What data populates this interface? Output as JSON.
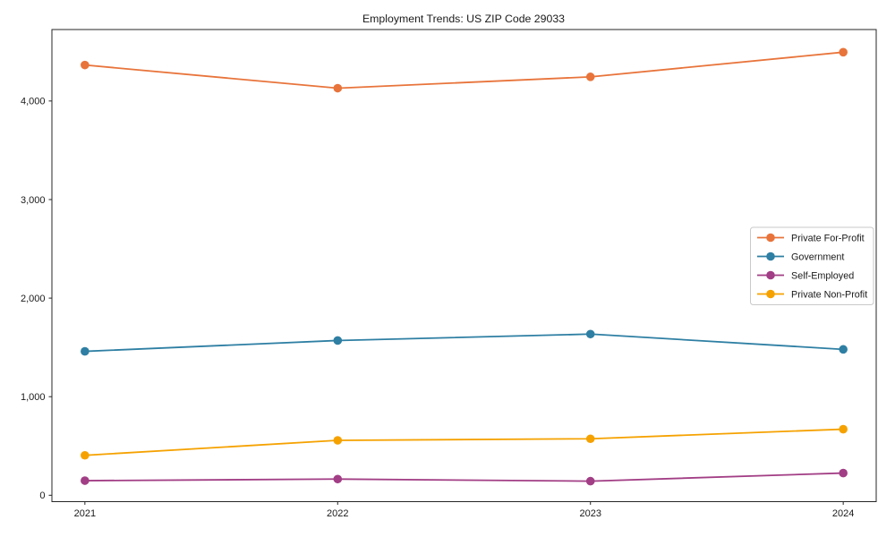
{
  "title": "Employment Trends: US ZIP Code 29033",
  "chart_data": {
    "type": "line",
    "title": "Employment Trends: US ZIP Code 29033",
    "xlabel": "",
    "ylabel": "",
    "categories": [
      "2021",
      "2022",
      "2023",
      "2024"
    ],
    "series": [
      {
        "name": "Private For-Profit",
        "color": "#E8743B",
        "values": [
          4365,
          4130,
          4245,
          4495
        ]
      },
      {
        "name": "Government",
        "color": "#2E7FA3",
        "values": [
          1460,
          1570,
          1635,
          1480
        ]
      },
      {
        "name": "Self-Employed",
        "color": "#A23E85",
        "values": [
          148,
          164,
          143,
          225
        ]
      },
      {
        "name": "Private Non-Profit",
        "color": "#F5A201",
        "values": [
          405,
          557,
          573,
          670
        ]
      }
    ],
    "ylim": [
      -65,
      4725
    ],
    "yticks": [
      0,
      1000,
      2000,
      3000,
      4000
    ],
    "ytick_labels": [
      "0",
      "1,000",
      "2,000",
      "3,000",
      "4,000"
    ],
    "grid": false,
    "legend_position": "center-right",
    "axis_color": "#262626",
    "background_color": "#ffffff"
  }
}
